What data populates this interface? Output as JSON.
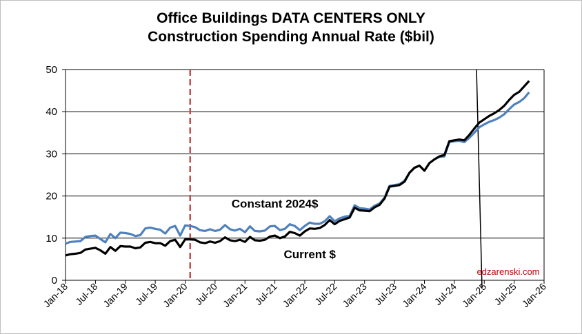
{
  "chart_data": {
    "type": "line",
    "title": "Office Buildings DATA CENTERS ONLY",
    "subtitle": "Construction Spending Annual Rate ($bil)",
    "xlabel": "",
    "ylabel": "",
    "ylim": [
      0,
      50
    ],
    "yticks": [
      0,
      10,
      20,
      30,
      40,
      50
    ],
    "xlim": [
      0,
      96
    ],
    "x_tick_labels": [
      "Jan-18",
      "Jul-18",
      "Jan-19",
      "Jul-19",
      "Jan-20",
      "Jul-20",
      "Jan-21",
      "Jul-21",
      "Jan-22",
      "Jul-22",
      "Jan-23",
      "Jul-23",
      "Jan-24",
      "Jul-24",
      "Jan-25",
      "Jul-25",
      "Jan-26"
    ],
    "grid": true,
    "legend": "none",
    "reference_lines": [
      {
        "name": "covid-marker",
        "x": 25,
        "style": "dashed",
        "color": "#c0504d"
      },
      {
        "name": "forecast-marker",
        "x": 83,
        "style": "solid",
        "color": "#000000"
      }
    ],
    "annotations": [
      {
        "text": "Constant 2024$",
        "x": 42,
        "y": 17.2
      },
      {
        "text": "Current $",
        "x": 49,
        "y": 5.2
      }
    ],
    "watermark": "edzarenski.com",
    "series": [
      {
        "name": "Constant 2024$",
        "color": "#4f81bd",
        "values": [
          8.7,
          9.1,
          9.2,
          9.3,
          10.3,
          10.5,
          10.6,
          9.8,
          9.0,
          11.0,
          10.0,
          11.3,
          11.2,
          11.0,
          10.5,
          10.7,
          12.3,
          12.5,
          12.2,
          12.0,
          11.1,
          12.5,
          12.9,
          10.6,
          13.0,
          12.9,
          12.6,
          11.9,
          11.7,
          12.1,
          11.7,
          12.0,
          13.1,
          12.1,
          11.8,
          12.2,
          11.4,
          12.8,
          11.7,
          11.6,
          11.8,
          12.8,
          12.9,
          11.9,
          12.2,
          13.3,
          12.9,
          11.9,
          12.9,
          13.7,
          13.4,
          13.4,
          14.0,
          15.2,
          14.0,
          14.7,
          15.1,
          15.3,
          17.8,
          17.1,
          17.0,
          16.8,
          17.7,
          18.2,
          19.6,
          22.4,
          22.6,
          22.8,
          23.6,
          25.5,
          26.7,
          27.2,
          26.0,
          27.8,
          28.7,
          29.3,
          29.4,
          32.8,
          33.0,
          33.1,
          32.8,
          33.8,
          35.0,
          36.3,
          37.0,
          37.6,
          38.0,
          38.6,
          39.4,
          40.6,
          41.7,
          42.3,
          43.2,
          44.6
        ]
      },
      {
        "name": "Current $",
        "color": "#000000",
        "values": [
          5.9,
          6.2,
          6.3,
          6.5,
          7.3,
          7.5,
          7.7,
          7.1,
          6.3,
          7.9,
          7.0,
          8.1,
          8.0,
          8.0,
          7.6,
          7.8,
          8.9,
          9.1,
          8.8,
          8.8,
          8.2,
          9.3,
          9.6,
          7.9,
          9.7,
          9.7,
          9.6,
          9.0,
          8.8,
          9.2,
          8.9,
          9.3,
          10.2,
          9.5,
          9.3,
          9.6,
          9.1,
          10.3,
          9.5,
          9.4,
          9.6,
          10.4,
          10.6,
          10.0,
          10.4,
          11.5,
          11.2,
          10.6,
          11.6,
          12.3,
          12.2,
          12.4,
          13.1,
          14.3,
          13.3,
          14.1,
          14.5,
          14.9,
          17.2,
          16.6,
          16.5,
          16.4,
          17.3,
          17.9,
          19.4,
          22.2,
          22.4,
          22.6,
          23.4,
          25.5,
          26.7,
          27.2,
          26.0,
          27.8,
          28.7,
          29.4,
          29.7,
          33.0,
          33.2,
          33.4,
          33.2,
          34.5,
          36.0,
          37.4,
          38.2,
          39.0,
          39.6,
          40.4,
          41.4,
          42.8,
          44.0,
          44.7,
          46.0,
          47.3
        ]
      }
    ]
  }
}
